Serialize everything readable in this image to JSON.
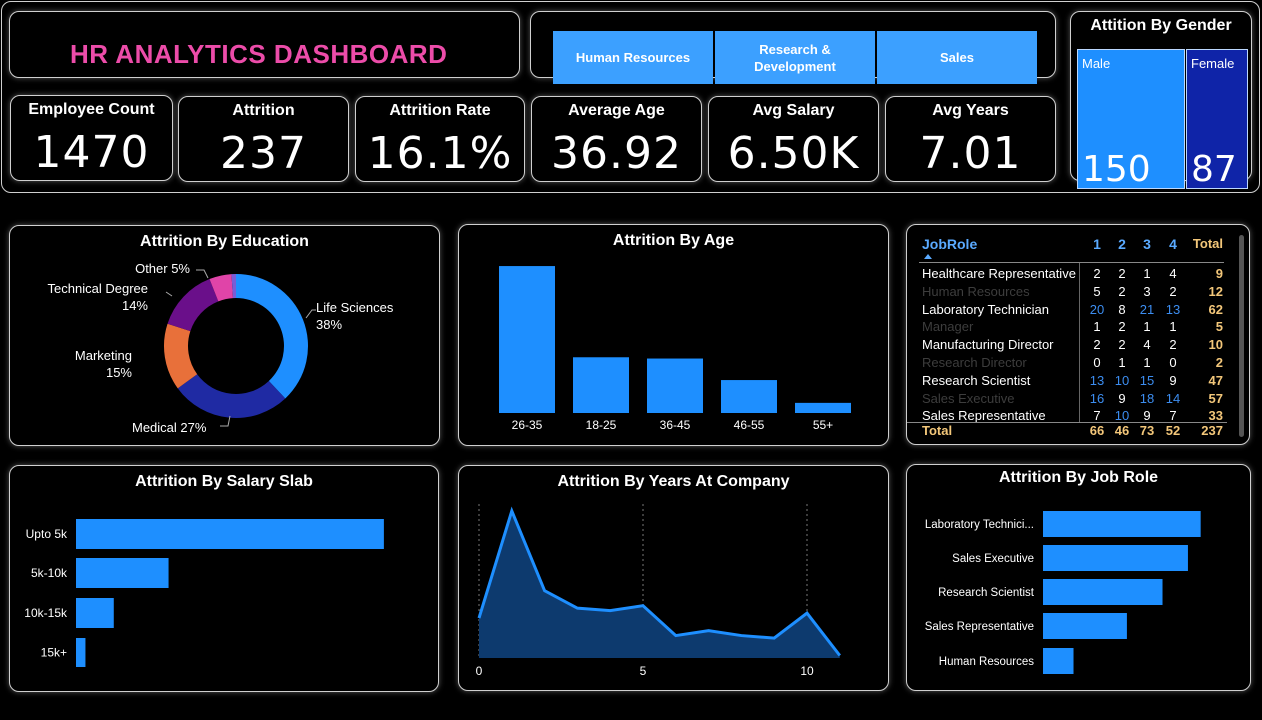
{
  "header": {
    "title": "HR ANALYTICS DASHBOARD",
    "departments": [
      "Human Resources",
      "Research & Development",
      "Sales"
    ]
  },
  "kpis": [
    {
      "label": "Employee Count",
      "value": "1470"
    },
    {
      "label": "Attrition",
      "value": "237"
    },
    {
      "label": "Attrition Rate",
      "value": "16.1%"
    },
    {
      "label": "Average Age",
      "value": "36.92"
    },
    {
      "label": "Avg Salary",
      "value": "6.50K"
    },
    {
      "label": "Avg Years",
      "value": "7.01"
    }
  ],
  "gender": {
    "title": "Attition By Gender",
    "male_label": "Male",
    "male_value": "150",
    "female_label": "Female",
    "female_value": "87"
  },
  "matrix": {
    "headers": [
      "JobRole",
      "1",
      "2",
      "3",
      "4",
      "Total"
    ],
    "rows": [
      {
        "role": "Healthcare Representative",
        "v": [
          "2",
          "2",
          "1",
          "4"
        ],
        "total": "9",
        "dim": false
      },
      {
        "role": "Human Resources",
        "v": [
          "5",
          "2",
          "3",
          "2"
        ],
        "total": "12",
        "dim": true
      },
      {
        "role": "Laboratory Technician",
        "v": [
          "20",
          "8",
          "21",
          "13"
        ],
        "total": "62",
        "dim": false
      },
      {
        "role": "Manager",
        "v": [
          "1",
          "2",
          "1",
          "1"
        ],
        "total": "5",
        "dim": true
      },
      {
        "role": "Manufacturing Director",
        "v": [
          "2",
          "2",
          "4",
          "2"
        ],
        "total": "10",
        "dim": false
      },
      {
        "role": "Research Director",
        "v": [
          "0",
          "1",
          "1",
          "0"
        ],
        "total": "2",
        "dim": true
      },
      {
        "role": "Research Scientist",
        "v": [
          "13",
          "10",
          "15",
          "9"
        ],
        "total": "47",
        "dim": false
      },
      {
        "role": "Sales Executive",
        "v": [
          "16",
          "9",
          "18",
          "14"
        ],
        "total": "57",
        "dim": true
      },
      {
        "role": "Sales Representative",
        "v": [
          "7",
          "10",
          "9",
          "7"
        ],
        "total": "33",
        "dim": false
      }
    ],
    "total": {
      "label": "Total",
      "v": [
        "66",
        "46",
        "73",
        "52"
      ],
      "total": "237"
    }
  },
  "colors": {
    "accent": "#1e8fff",
    "title": "#ec4ca9",
    "dark_blue": "#0f24a8",
    "total": "#f3c77a"
  },
  "chart_data": [
    {
      "type": "pie",
      "title": "Attrition By Education",
      "donut": true,
      "slices": [
        {
          "label": "Life Sciences",
          "pct": "38%",
          "value": 38,
          "color": "#1e8fff"
        },
        {
          "label": "Medical",
          "pct": "27%",
          "value": 27,
          "color": "#1f2aa3"
        },
        {
          "label": "Marketing",
          "pct": "15%",
          "value": 15,
          "color": "#e8703a"
        },
        {
          "label": "Technical Degree",
          "pct": "14%",
          "value": 14,
          "color": "#6a0f8a"
        },
        {
          "label": "Other",
          "pct": "5%",
          "value": 5,
          "color": "#e044a8"
        },
        {
          "label": "",
          "pct": "",
          "value": 1,
          "color": "#7a5cd6"
        }
      ]
    },
    {
      "type": "bar",
      "title": "Attrition By Age",
      "categories": [
        "26-35",
        "18-25",
        "36-45",
        "46-55",
        "55+"
      ],
      "values": [
        116,
        44,
        43,
        26,
        8
      ],
      "ylim": [
        0,
        120
      ]
    },
    {
      "type": "bar",
      "orientation": "horizontal",
      "title": "Attrition By Salary Slab",
      "categories": [
        "Upto 5k",
        "5k-10k",
        "10k-15k",
        "15k+"
      ],
      "values": [
        163,
        49,
        20,
        5
      ],
      "xlim": [
        0,
        180
      ]
    },
    {
      "type": "area",
      "title": "Attrition By Years At Company",
      "x": [
        0,
        1,
        2,
        3,
        4,
        5,
        6,
        7,
        8,
        9,
        10,
        11
      ],
      "values": [
        16,
        59,
        27,
        20,
        19,
        21,
        9,
        11,
        9,
        8,
        18,
        1
      ],
      "xticks": [
        "0",
        "5",
        "10"
      ],
      "ylim": [
        0,
        65
      ]
    },
    {
      "type": "bar",
      "orientation": "horizontal",
      "title": "Attrition By Job Role",
      "categories": [
        "Laboratory Technici...",
        "Sales Executive",
        "Research Scientist",
        "Sales Representative",
        "Human Resources"
      ],
      "values": [
        62,
        57,
        47,
        33,
        12
      ],
      "xlim": [
        0,
        70
      ]
    }
  ]
}
